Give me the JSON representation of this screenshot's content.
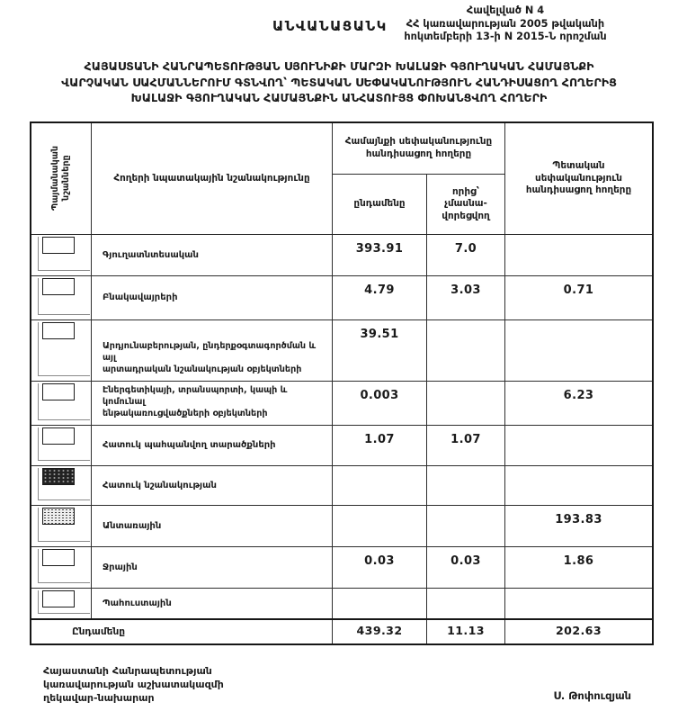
{
  "header": {
    "doc_label": "ԱՆՎԱՆԱՑԱՆԿ",
    "annex_lines": [
      "Հավելված  N 4",
      "ՀՀ կառավարության 2005 թվականի",
      "հոկտեմբերի 13-ի N 2015-Ն որոշման"
    ],
    "title_lines": [
      "ՀԱՅԱՍՏԱՆԻ ՀԱՆՐԱՊԵՏՈՒԹՅԱՆ ՍՅՈՒՆԻՔԻ ՄԱՐԶԻ ԽԱԼԱՋԻ ԳՅՈՒՂԱԿԱՆ ՀԱՄԱՅՆՔԻ",
      "ՎԱՐՉԱԿԱՆ ՍԱՀՄԱՆՆԵՐՈՒՄ ԳՏՆՎՈՂ՝ ՊԵՏԱԿԱՆ ՍԵՓԱԿԱՆՈՒԹՅՈՒՆ ՀԱՆԴԻՍԱՑՈՂ ՀՈՂԵՐԻՑ",
      "ԽԱԼԱՋԻ ԳՅՈՒՂԱԿԱՆ ՀԱՄԱՅՆՔԻՆ ԱՆՀԱՏՈՒՅՑ ՓՈԽԱՆՑՎՈՂ ՀՈՂԵՐԻ"
    ]
  },
  "table": {
    "headers": {
      "symbols": "Պայմանական\nնշանները",
      "purpose": "Հողերի  նպատակային նշանակությունը",
      "community_group": "Համայնքի սեփականությունը\nհանդիսացող հողերը",
      "sub_total": "ընդամենը",
      "sub_of_which": "որից՝\nչմասնա-\nվորեցվող",
      "state": "Պետական\nսեփականություն\nհանդիսացող հողերը"
    },
    "rows": [
      {
        "symbol": "plain",
        "label": "Գյուղատնտեսական",
        "total": "393.91",
        "of_which": "7.0",
        "state": ""
      },
      {
        "symbol": "plain",
        "label": "Բնակավայրերի",
        "total": "4.79",
        "of_which": "3.03",
        "state": "0.71"
      },
      {
        "symbol": "plain",
        "label": "Արդյունաբերության, ընդերքօգտագործման և այլ\nարտադրական  նշանակության  օբյեկտների",
        "total": "39.51",
        "of_which": "",
        "state": ""
      },
      {
        "symbol": "plain",
        "label": "Էներգետիկայի, տրանսպորտի, կապի և կոմունալ\nենթակառուցվածքների  օբյեկտների",
        "total": "0.003",
        "of_which": "",
        "state": "6.23"
      },
      {
        "symbol": "plain",
        "label": "Հատուկ պահպանվող տարածքների",
        "total": "1.07",
        "of_which": "1.07",
        "state": ""
      },
      {
        "symbol": "dark",
        "label": "Հատուկ նշանակության",
        "total": "",
        "of_which": "",
        "state": ""
      },
      {
        "symbol": "speckled",
        "label": "Անտառային",
        "total": "",
        "of_which": "",
        "state": "193.83"
      },
      {
        "symbol": "plain",
        "label": "Ջրային",
        "total": "0.03",
        "of_which": "0.03",
        "state": "1.86"
      },
      {
        "symbol": "plain",
        "label": "Պահուստային",
        "total": "",
        "of_which": "",
        "state": ""
      }
    ],
    "total_row": {
      "label": "Ընդամենը",
      "total": "439.32",
      "of_which": "11.13",
      "state": "202.63"
    }
  },
  "footer": {
    "left_lines": [
      "Հայաստանի Հանրապետության",
      "կառավարության աշխատակազմի",
      "ղեկավար-նախարար"
    ],
    "signature": "Ս. Թոփուզյան"
  }
}
